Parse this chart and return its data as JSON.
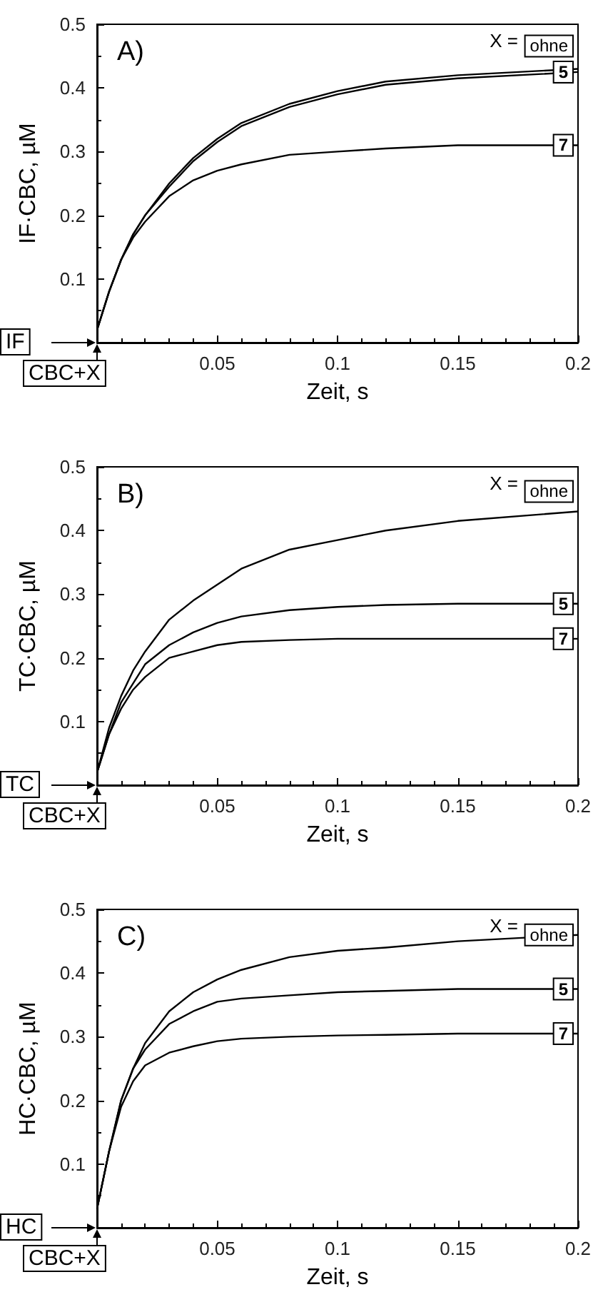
{
  "chart_data": [
    {
      "type": "line",
      "xlabel": "Zeit, s",
      "ylabel": "IF·CBC, µM",
      "annotations": [
        "A)",
        "X =",
        "IF",
        "CBC+X"
      ],
      "xlim": [
        0,
        0.2
      ],
      "ylim": [
        0,
        0.5
      ],
      "xticks": [
        0.05,
        0.1,
        0.15,
        0.2
      ],
      "yticks": [
        0.1,
        0.2,
        0.3,
        0.4,
        0.5
      ],
      "grid": false,
      "legend": "right",
      "marker": "none",
      "line_style": "solid",
      "x": [
        0,
        0.005,
        0.01,
        0.015,
        0.02,
        0.03,
        0.04,
        0.05,
        0.06,
        0.08,
        0.1,
        0.12,
        0.15,
        0.2
      ],
      "series": [
        {
          "name": "ohne",
          "color": "#000000",
          "values": [
            0.02,
            0.08,
            0.13,
            0.17,
            0.2,
            0.25,
            0.29,
            0.32,
            0.345,
            0.375,
            0.395,
            0.41,
            0.42,
            0.43
          ]
        },
        {
          "name": "5",
          "color": "#000000",
          "values": [
            0.02,
            0.08,
            0.13,
            0.17,
            0.2,
            0.245,
            0.285,
            0.315,
            0.34,
            0.37,
            0.39,
            0.405,
            0.415,
            0.425
          ]
        },
        {
          "name": "7",
          "color": "#000000",
          "values": [
            0.02,
            0.08,
            0.13,
            0.165,
            0.19,
            0.23,
            0.255,
            0.27,
            0.28,
            0.295,
            0.3,
            0.305,
            0.31,
            0.31
          ]
        }
      ]
    },
    {
      "type": "line",
      "xlabel": "Zeit, s",
      "ylabel": "TC·CBC, µM",
      "annotations": [
        "B)",
        "X =",
        "TC",
        "CBC+X"
      ],
      "xlim": [
        0,
        0.2
      ],
      "ylim": [
        0,
        0.5
      ],
      "xticks": [
        0.05,
        0.1,
        0.15,
        0.2
      ],
      "yticks": [
        0.1,
        0.2,
        0.3,
        0.4,
        0.5
      ],
      "grid": false,
      "legend": "right",
      "marker": "none",
      "line_style": "solid",
      "x": [
        0,
        0.005,
        0.01,
        0.015,
        0.02,
        0.03,
        0.04,
        0.05,
        0.06,
        0.08,
        0.1,
        0.12,
        0.15,
        0.2
      ],
      "series": [
        {
          "name": "ohne",
          "color": "#000000",
          "values": [
            0.02,
            0.09,
            0.14,
            0.18,
            0.21,
            0.26,
            0.29,
            0.315,
            0.34,
            0.37,
            0.385,
            0.4,
            0.415,
            0.43
          ]
        },
        {
          "name": "5",
          "color": "#000000",
          "values": [
            0.02,
            0.08,
            0.13,
            0.16,
            0.19,
            0.22,
            0.24,
            0.255,
            0.265,
            0.275,
            0.28,
            0.283,
            0.285,
            0.285
          ]
        },
        {
          "name": "7",
          "color": "#000000",
          "values": [
            0.02,
            0.08,
            0.12,
            0.15,
            0.17,
            0.2,
            0.21,
            0.22,
            0.225,
            0.228,
            0.23,
            0.23,
            0.23,
            0.23
          ]
        }
      ]
    },
    {
      "type": "line",
      "xlabel": "Zeit, s",
      "ylabel": "HC·CBC, µM",
      "annotations": [
        "C)",
        "X =",
        "HC",
        "CBC+X"
      ],
      "xlim": [
        0,
        0.2
      ],
      "ylim": [
        0,
        0.5
      ],
      "xticks": [
        0.05,
        0.1,
        0.15,
        0.2
      ],
      "yticks": [
        0.1,
        0.2,
        0.3,
        0.4,
        0.5
      ],
      "grid": false,
      "legend": "right",
      "marker": "none",
      "line_style": "solid",
      "x": [
        0,
        0.005,
        0.01,
        0.015,
        0.02,
        0.03,
        0.04,
        0.05,
        0.06,
        0.08,
        0.1,
        0.12,
        0.15,
        0.2
      ],
      "series": [
        {
          "name": "ohne",
          "color": "#000000",
          "values": [
            0.03,
            0.12,
            0.2,
            0.25,
            0.29,
            0.34,
            0.37,
            0.39,
            0.405,
            0.425,
            0.435,
            0.44,
            0.45,
            0.46
          ]
        },
        {
          "name": "5",
          "color": "#000000",
          "values": [
            0.03,
            0.12,
            0.2,
            0.25,
            0.28,
            0.32,
            0.34,
            0.355,
            0.36,
            0.365,
            0.37,
            0.372,
            0.375,
            0.375
          ]
        },
        {
          "name": "7",
          "color": "#000000",
          "values": [
            0.03,
            0.12,
            0.19,
            0.23,
            0.255,
            0.275,
            0.285,
            0.293,
            0.297,
            0.3,
            0.302,
            0.303,
            0.305,
            0.305
          ]
        }
      ]
    }
  ]
}
